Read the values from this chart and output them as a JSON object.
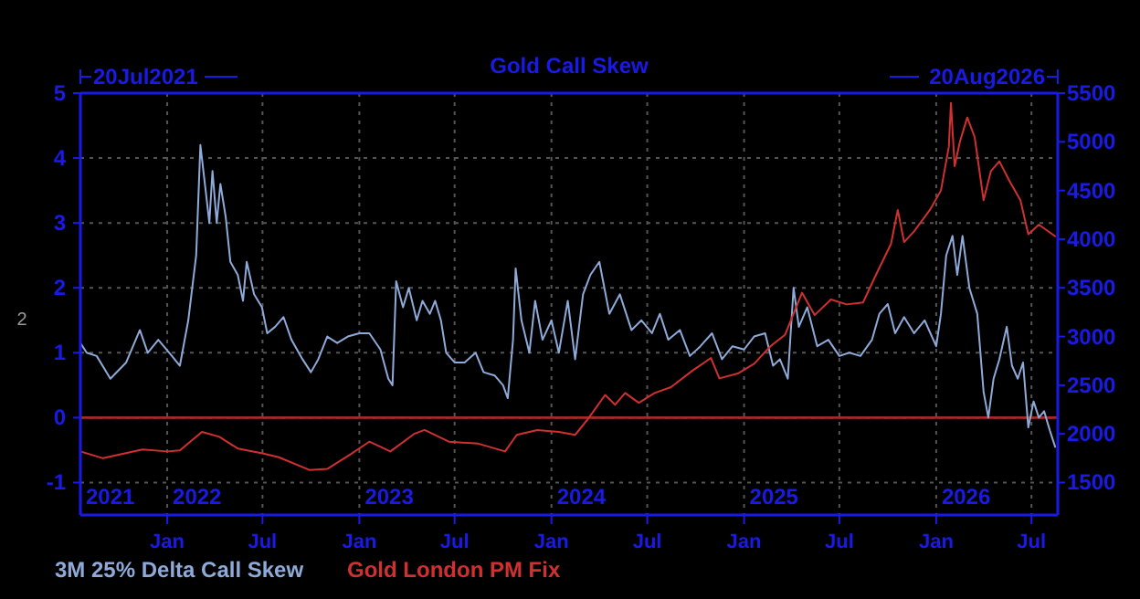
{
  "chart_data": {
    "type": "line",
    "title": "Gold Call Skew",
    "ylabel": "2",
    "xlim": [
      "2021-07-20",
      "2026-08-20"
    ],
    "xticks": [
      {
        "value": "2022-01-01",
        "label": "Jan"
      },
      {
        "value": "2022-07-01",
        "label": "Jul"
      },
      {
        "value": "2023-01-01",
        "label": "Jan"
      },
      {
        "value": "2023-07-01",
        "label": "Jul"
      },
      {
        "value": "2024-01-01",
        "label": "Jan"
      },
      {
        "value": "2024-07-01",
        "label": "Jul"
      },
      {
        "value": "2025-01-01",
        "label": "Jan"
      },
      {
        "value": "2025-07-01",
        "label": "Jul"
      },
      {
        "value": "2026-01-01",
        "label": "Jan"
      },
      {
        "value": "2026-07-01",
        "label": "Jul"
      }
    ],
    "ylim": [
      -1.5,
      5
    ],
    "yticks": [
      -1,
      0,
      1,
      2,
      3,
      4,
      5
    ],
    "y2lim": [
      1167,
      5500
    ],
    "y2ticks": [
      1500,
      2000,
      2500,
      3000,
      3500,
      4000,
      4500,
      5000,
      5500
    ],
    "grid": true,
    "legend": "bottom left",
    "line_style": "solid",
    "marker": "none",
    "ref_lines": [
      {
        "axis": "y",
        "value": 0,
        "label": null,
        "color": "#a82828"
      }
    ],
    "annotations": [
      "20Jul2021",
      "20Aug2026",
      "2021",
      "2022",
      "2023",
      "2024",
      "2025",
      "2026"
    ],
    "series": [
      {
        "name": "3M 25% Delta Call Skew",
        "color": "#8eaad8",
        "x": [
          "2021-07-20",
          "2021-08-01",
          "2021-08-20",
          "2021-09-15",
          "2021-10-15",
          "2021-11-10",
          "2021-11-25",
          "2021-12-15",
          "2022-01-10",
          "2022-01-25",
          "2022-02-10",
          "2022-02-25",
          "2022-03-05",
          "2022-03-15",
          "2022-03-22",
          "2022-03-28",
          "2022-04-05",
          "2022-04-12",
          "2022-04-22",
          "2022-05-01",
          "2022-05-15",
          "2022-05-25",
          "2022-06-01",
          "2022-06-15",
          "2022-06-30",
          "2022-07-10",
          "2022-07-25",
          "2022-08-10",
          "2022-08-25",
          "2022-09-15",
          "2022-10-01",
          "2022-10-15",
          "2022-11-01",
          "2022-11-20",
          "2022-12-10",
          "2023-01-01",
          "2023-01-20",
          "2023-02-10",
          "2023-02-25",
          "2023-03-05",
          "2023-03-12",
          "2023-03-25",
          "2023-04-05",
          "2023-04-20",
          "2023-05-01",
          "2023-05-15",
          "2023-05-25",
          "2023-06-05",
          "2023-06-15",
          "2023-07-01",
          "2023-07-20",
          "2023-08-10",
          "2023-08-25",
          "2023-09-15",
          "2023-10-01",
          "2023-10-10",
          "2023-10-20",
          "2023-10-25",
          "2023-11-05",
          "2023-11-20",
          "2023-12-01",
          "2023-12-15",
          "2024-01-01",
          "2024-01-15",
          "2024-02-01",
          "2024-02-15",
          "2024-03-01",
          "2024-03-15",
          "2024-04-01",
          "2024-04-20",
          "2024-05-10",
          "2024-06-01",
          "2024-06-20",
          "2024-07-10",
          "2024-07-25",
          "2024-08-10",
          "2024-09-01",
          "2024-09-20",
          "2024-10-10",
          "2024-11-01",
          "2024-11-20",
          "2024-12-10",
          "2025-01-01",
          "2025-01-20",
          "2025-02-10",
          "2025-02-25",
          "2025-03-10",
          "2025-03-25",
          "2025-04-05",
          "2025-04-15",
          "2025-05-01",
          "2025-05-20",
          "2025-06-10",
          "2025-07-01",
          "2025-07-20",
          "2025-08-10",
          "2025-09-01",
          "2025-09-15",
          "2025-10-01",
          "2025-10-15",
          "2025-11-01",
          "2025-11-20",
          "2025-12-10",
          "2026-01-01",
          "2026-01-10",
          "2026-01-20",
          "2026-02-01",
          "2026-02-10",
          "2026-02-20",
          "2026-03-05",
          "2026-03-20",
          "2026-04-01",
          "2026-04-10",
          "2026-04-20",
          "2026-05-01",
          "2026-05-15",
          "2026-05-25",
          "2026-06-05",
          "2026-06-15",
          "2026-06-25",
          "2026-07-05",
          "2026-07-15",
          "2026-07-25",
          "2026-08-05",
          "2026-08-15"
        ],
        "values": [
          1.15,
          1.0,
          0.95,
          0.6,
          0.85,
          1.35,
          1.0,
          1.2,
          0.95,
          0.8,
          1.5,
          2.5,
          4.2,
          3.5,
          3.0,
          3.8,
          3.0,
          3.6,
          3.1,
          2.4,
          2.2,
          1.8,
          2.4,
          1.9,
          1.7,
          1.3,
          1.4,
          1.55,
          1.2,
          0.9,
          0.7,
          0.9,
          1.25,
          1.15,
          1.25,
          1.3,
          1.3,
          1.05,
          0.6,
          0.5,
          2.1,
          1.7,
          2.0,
          1.5,
          1.8,
          1.6,
          1.8,
          1.5,
          1.0,
          0.85,
          0.85,
          1.0,
          0.7,
          0.65,
          0.5,
          0.3,
          1.2,
          2.3,
          1.5,
          1.0,
          1.8,
          1.2,
          1.5,
          1.0,
          1.8,
          0.9,
          1.9,
          2.2,
          2.4,
          1.6,
          1.9,
          1.35,
          1.5,
          1.3,
          1.6,
          1.2,
          1.35,
          0.95,
          1.1,
          1.3,
          0.9,
          1.1,
          1.05,
          1.25,
          1.3,
          0.8,
          0.9,
          0.6,
          2.0,
          1.4,
          1.7,
          1.1,
          1.2,
          0.95,
          1.0,
          0.95,
          1.2,
          1.6,
          1.75,
          1.3,
          1.55,
          1.3,
          1.5,
          1.1,
          1.6,
          2.5,
          2.8,
          2.2,
          2.8,
          2.0,
          1.6,
          0.4,
          0.0,
          0.6,
          0.9,
          1.4,
          0.8,
          0.6,
          0.85,
          -0.15,
          0.25,
          0.0,
          0.1,
          -0.2,
          -0.45
        ]
      },
      {
        "name": "Gold London PM Fix",
        "color": "#d03030",
        "axis": "y2",
        "x": [
          "2021-07-20",
          "2021-09-01",
          "2021-11-15",
          "2022-01-01",
          "2022-01-25",
          "2022-03-08",
          "2022-04-10",
          "2022-05-15",
          "2022-07-01",
          "2022-08-01",
          "2022-09-28",
          "2022-11-01",
          "2022-12-15",
          "2023-01-20",
          "2023-03-01",
          "2023-04-15",
          "2023-05-05",
          "2023-06-20",
          "2023-08-15",
          "2023-10-05",
          "2023-10-27",
          "2023-12-05",
          "2024-01-15",
          "2024-02-15",
          "2024-03-10",
          "2024-04-12",
          "2024-05-01",
          "2024-05-20",
          "2024-06-15",
          "2024-07-15",
          "2024-08-15",
          "2024-09-25",
          "2024-10-30",
          "2024-11-15",
          "2024-12-20",
          "2025-01-20",
          "2025-02-20",
          "2025-03-20",
          "2025-04-21",
          "2025-05-15",
          "2025-06-15",
          "2025-07-15",
          "2025-08-15",
          "2025-09-10",
          "2025-10-07",
          "2025-10-20",
          "2025-11-01",
          "2025-11-20",
          "2025-12-20",
          "2026-01-10",
          "2026-01-25",
          "2026-01-29",
          "2026-02-05",
          "2026-02-15",
          "2026-03-01",
          "2026-03-15",
          "2026-04-01",
          "2026-04-15",
          "2026-05-01",
          "2026-05-20",
          "2026-06-10",
          "2026-06-25",
          "2026-07-15",
          "2026-08-15"
        ],
        "values": [
          1820,
          1750,
          1840,
          1820,
          1830,
          2020,
          1970,
          1850,
          1800,
          1760,
          1630,
          1640,
          1790,
          1920,
          1820,
          2000,
          2040,
          1920,
          1900,
          1820,
          1990,
          2040,
          2020,
          1990,
          2150,
          2400,
          2300,
          2420,
          2320,
          2420,
          2480,
          2650,
          2780,
          2570,
          2620,
          2720,
          2900,
          3020,
          3450,
          3220,
          3380,
          3330,
          3350,
          3650,
          3950,
          4300,
          3970,
          4080,
          4300,
          4500,
          4950,
          5400,
          4750,
          5000,
          5250,
          5050,
          4400,
          4700,
          4800,
          4600,
          4400,
          4050,
          4150,
          4030
        ]
      }
    ]
  }
}
